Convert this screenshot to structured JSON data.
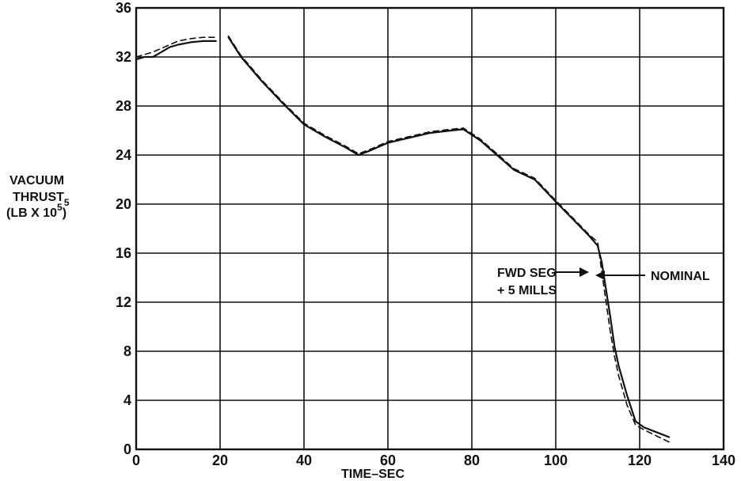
{
  "chart_data": {
    "type": "line",
    "xlabel": "TIME–SEC",
    "ylabel_line1": "VACUUM",
    "ylabel_line2": "THRUST",
    "ylabel_sup": "5",
    "ylabel_line3": "(LB X 10",
    "ylabel_sup2": "5",
    "ylabel_close": ")",
    "xlim": [
      0,
      140
    ],
    "ylim": [
      0,
      36
    ],
    "xticks": [
      "0",
      "20",
      "40",
      "60",
      "80",
      "100",
      "120",
      "140"
    ],
    "yticks": [
      "0",
      "4",
      "8",
      "12",
      "16",
      "20",
      "24",
      "28",
      "32",
      "36"
    ],
    "grid": true,
    "series": [
      {
        "name": "NOMINAL",
        "style": "solid",
        "segments": [
          [
            [
              0,
              31.8
            ],
            [
              2,
              32.0
            ],
            [
              4,
              32.0
            ],
            [
              6,
              32.4
            ],
            [
              8,
              32.8
            ],
            [
              10,
              33.0
            ],
            [
              13,
              33.2
            ],
            [
              16,
              33.3
            ],
            [
              19,
              33.3
            ]
          ],
          [
            [
              22,
              33.6
            ],
            [
              25,
              32.0
            ],
            [
              30,
              30.0
            ],
            [
              35,
              28.2
            ],
            [
              40,
              26.5
            ],
            [
              45,
              25.5
            ],
            [
              50,
              24.6
            ],
            [
              53,
              24.0
            ],
            [
              56,
              24.4
            ],
            [
              60,
              25.0
            ],
            [
              65,
              25.4
            ],
            [
              70,
              25.8
            ],
            [
              75,
              26.0
            ],
            [
              78,
              26.1
            ],
            [
              82,
              25.2
            ],
            [
              86,
              24.0
            ],
            [
              90,
              22.8
            ],
            [
              95,
              22.0
            ],
            [
              100,
              20.2
            ],
            [
              104,
              18.8
            ],
            [
              108,
              17.4
            ],
            [
              110,
              16.6
            ],
            [
              111,
              15.2
            ],
            [
              112,
              13.0
            ],
            [
              113,
              10.8
            ],
            [
              114,
              8.4
            ],
            [
              115,
              6.8
            ],
            [
              117,
              4.4
            ],
            [
              119,
              2.3
            ],
            [
              121,
              1.8
            ],
            [
              124,
              1.4
            ],
            [
              127,
              1.0
            ]
          ]
        ]
      },
      {
        "name": "FWD SEG + 5 MILLS",
        "style": "dashed",
        "segments": [
          [
            [
              0,
              32.0
            ],
            [
              2,
              32.2
            ],
            [
              4,
              32.4
            ],
            [
              6,
              32.7
            ],
            [
              8,
              33.0
            ],
            [
              10,
              33.3
            ],
            [
              13,
              33.5
            ],
            [
              16,
              33.6
            ],
            [
              19,
              33.6
            ]
          ],
          [
            [
              22,
              33.7
            ],
            [
              25,
              32.1
            ],
            [
              30,
              30.1
            ],
            [
              35,
              28.3
            ],
            [
              40,
              26.6
            ],
            [
              45,
              25.6
            ],
            [
              50,
              24.7
            ],
            [
              53,
              24.1
            ],
            [
              56,
              24.5
            ],
            [
              60,
              25.1
            ],
            [
              65,
              25.5
            ],
            [
              70,
              25.9
            ],
            [
              75,
              26.1
            ],
            [
              78,
              26.2
            ],
            [
              82,
              25.3
            ],
            [
              86,
              24.1
            ],
            [
              90,
              22.9
            ],
            [
              95,
              22.1
            ],
            [
              100,
              20.3
            ],
            [
              104,
              18.9
            ],
            [
              108,
              17.5
            ],
            [
              110,
              16.9
            ],
            [
              111,
              14.4
            ],
            [
              112,
              12.0
            ],
            [
              113,
              9.6
            ],
            [
              114,
              7.6
            ],
            [
              115,
              6.0
            ],
            [
              117,
              3.6
            ],
            [
              119,
              2.0
            ],
            [
              121,
              1.6
            ],
            [
              124,
              1.1
            ],
            [
              127,
              0.6
            ]
          ]
        ]
      }
    ],
    "annotations": {
      "fwd_line1": "FWD SEG",
      "fwd_line2": "+ 5 MILLS",
      "nominal": "NOMINAL"
    }
  }
}
